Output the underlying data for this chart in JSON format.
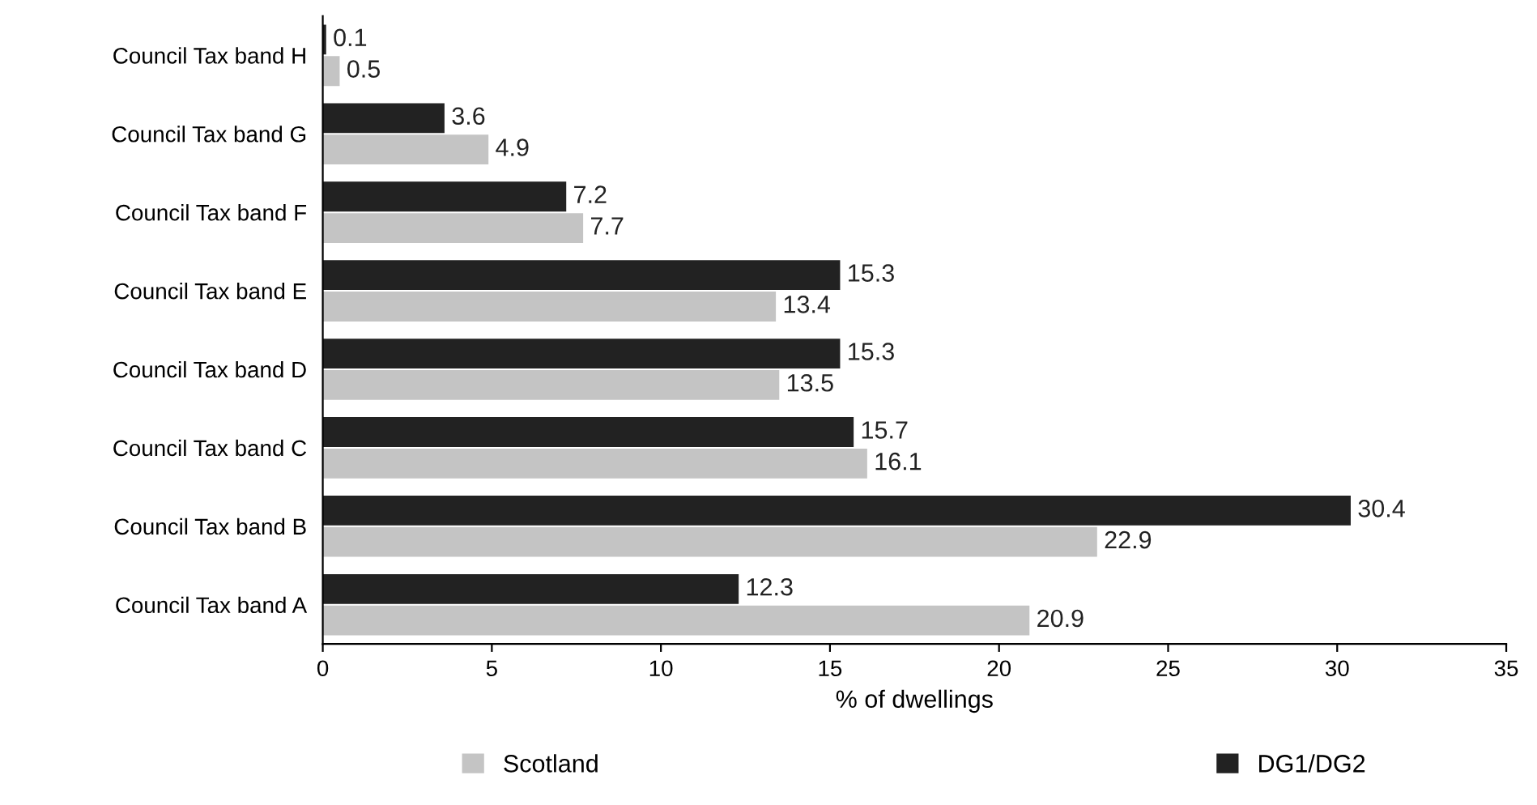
{
  "chart_data": {
    "type": "bar",
    "orientation": "horizontal",
    "xlabel": "% of dwellings",
    "categories": [
      "Council Tax band H",
      "Council Tax band G",
      "Council Tax band F",
      "Council Tax band E",
      "Council Tax band D",
      "Council Tax band C",
      "Council Tax band B",
      "Council Tax band A"
    ],
    "series": [
      {
        "name": "Scotland",
        "color": "#c4c4c4",
        "values": [
          0.5,
          4.9,
          7.7,
          13.4,
          13.5,
          16.1,
          22.9,
          20.9
        ]
      },
      {
        "name": "DG1/DG2",
        "color": "#222222",
        "values": [
          0.1,
          3.6,
          7.2,
          15.3,
          15.3,
          15.7,
          30.4,
          12.3
        ]
      }
    ],
    "xlim": [
      0,
      35
    ],
    "xticks": [
      0,
      5,
      10,
      15,
      20,
      25,
      30,
      35
    ],
    "grid": false,
    "legend": "bottom",
    "data_labels": true
  }
}
